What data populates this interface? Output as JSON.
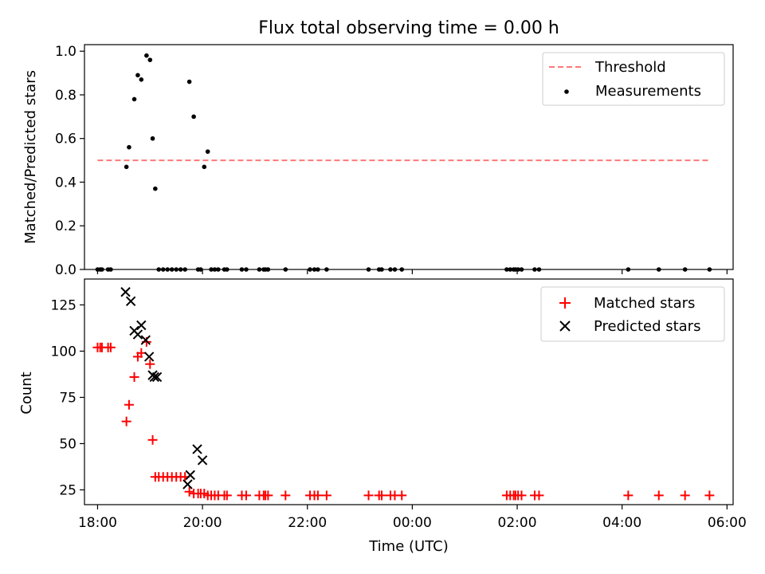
{
  "chart_data": [
    {
      "type": "scatter",
      "title": "Flux total observing time = 0.00 h",
      "xlabel": "",
      "ylabel": "Matched/Predicted stars",
      "xlim": [
        "17:45",
        "06:07"
      ],
      "ylim": [
        0,
        1.03
      ],
      "yticks": [
        "0.0",
        "0.2",
        "0.4",
        "0.6",
        "0.8",
        "1.0"
      ],
      "legend_position": "top-right",
      "series": [
        {
          "name": "Threshold",
          "style": "dashed-line",
          "color": "#ff7777",
          "x": [
            "18:00",
            "05:40"
          ],
          "y": [
            0.5,
            0.5
          ]
        },
        {
          "name": "Measurements",
          "style": "dot",
          "color": "#000000",
          "x": [
            "18:00",
            "18:03",
            "18:05",
            "18:12",
            "18:15",
            "18:33",
            "18:36",
            "18:42",
            "18:46",
            "18:50",
            "18:56",
            "19:00",
            "19:03",
            "19:06",
            "19:10",
            "19:15",
            "19:20",
            "19:25",
            "19:30",
            "19:35",
            "19:40",
            "19:45",
            "19:50",
            "19:55",
            "19:58",
            "20:02",
            "20:06",
            "20:10",
            "20:14",
            "20:18",
            "20:25",
            "20:28",
            "20:45",
            "20:50",
            "21:05",
            "21:10",
            "21:12",
            "21:15",
            "21:35",
            "22:03",
            "22:08",
            "22:12",
            "22:22",
            "23:10",
            "23:22",
            "23:25",
            "23:35",
            "23:40",
            "23:48",
            "01:48",
            "01:52",
            "01:56",
            "01:58",
            "02:01",
            "02:05",
            "02:20",
            "02:25",
            "04:07",
            "04:42",
            "05:12",
            "05:40"
          ],
          "y": [
            0,
            0,
            0,
            0,
            0,
            0.47,
            0.56,
            0.78,
            0.89,
            0.87,
            0.98,
            0.96,
            0.6,
            0.37,
            0,
            0,
            0,
            0,
            0,
            0,
            0,
            0.86,
            0.7,
            0,
            0,
            0.47,
            0.54,
            0,
            0,
            0,
            0,
            0,
            0,
            0,
            0,
            0,
            0,
            0,
            0,
            0,
            0,
            0,
            0,
            0,
            0,
            0,
            0,
            0,
            0,
            0,
            0,
            0,
            0,
            0,
            0,
            0,
            0,
            0,
            0,
            0,
            0
          ]
        }
      ]
    },
    {
      "type": "scatter",
      "title": "",
      "xlabel": "Time (UTC)",
      "ylabel": "Count",
      "xticks": [
        "18:00",
        "20:00",
        "22:00",
        "00:00",
        "02:00",
        "04:00",
        "06:00"
      ],
      "ylim": [
        17,
        139
      ],
      "yticks": [
        "25",
        "50",
        "75",
        "100",
        "125"
      ],
      "legend_position": "top-right",
      "series": [
        {
          "name": "Matched stars",
          "marker": "+",
          "color": "#ff0000",
          "x": [
            "18:00",
            "18:03",
            "18:05",
            "18:12",
            "18:15",
            "18:33",
            "18:36",
            "18:42",
            "18:46",
            "18:50",
            "18:56",
            "19:00",
            "19:03",
            "19:06",
            "19:10",
            "19:15",
            "19:20",
            "19:25",
            "19:30",
            "19:35",
            "19:40",
            "19:45",
            "19:50",
            "19:55",
            "19:58",
            "20:02",
            "20:06",
            "20:10",
            "20:14",
            "20:18",
            "20:25",
            "20:28",
            "20:45",
            "20:50",
            "21:05",
            "21:10",
            "21:12",
            "21:15",
            "21:35",
            "22:03",
            "22:08",
            "22:12",
            "22:22",
            "23:10",
            "23:22",
            "23:25",
            "23:35",
            "23:40",
            "23:48",
            "01:48",
            "01:52",
            "01:56",
            "01:58",
            "02:01",
            "02:05",
            "02:20",
            "02:25",
            "04:07",
            "04:42",
            "05:12",
            "05:40"
          ],
          "y": [
            102,
            102,
            102,
            102,
            102,
            62,
            71,
            86,
            97,
            99,
            105,
            93,
            52,
            32,
            32,
            32,
            32,
            32,
            32,
            32,
            32,
            24,
            23,
            23,
            23,
            23,
            22,
            22,
            22,
            22,
            22,
            22,
            22,
            22,
            22,
            22,
            22,
            22,
            22,
            22,
            22,
            22,
            22,
            22,
            22,
            22,
            22,
            22,
            22,
            22,
            22,
            22,
            22,
            22,
            22,
            22,
            22,
            22,
            22,
            22,
            22
          ]
        },
        {
          "name": "Predicted stars",
          "marker": "x",
          "color": "#000000",
          "x": [
            "18:32",
            "18:38",
            "18:42",
            "18:46",
            "18:50",
            "18:55",
            "18:59",
            "19:03",
            "19:05",
            "19:08",
            "19:43",
            "19:46",
            "19:54",
            "20:00"
          ],
          "y": [
            132,
            127,
            111,
            109,
            114,
            106,
            97,
            87,
            86,
            86,
            28,
            33,
            47,
            41
          ]
        }
      ]
    }
  ]
}
